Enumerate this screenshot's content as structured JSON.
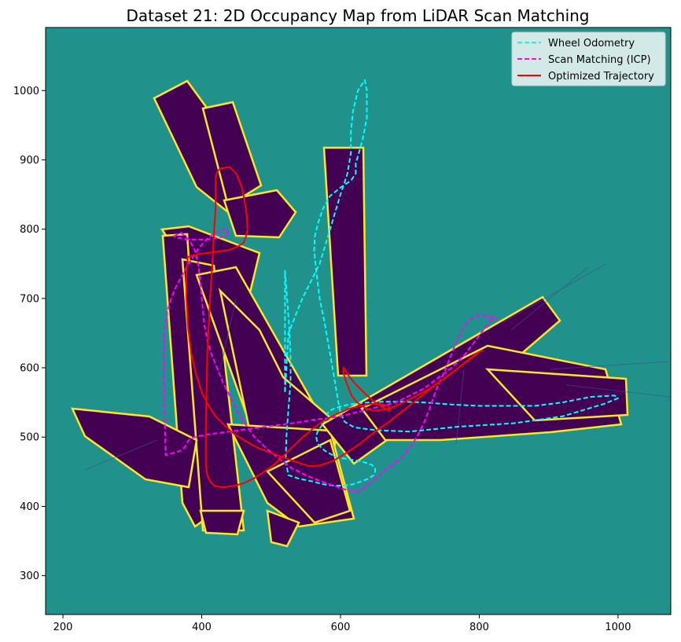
{
  "chart_data": {
    "type": "line",
    "title": "Dataset 21: 2D Occupancy Map from LiDAR Scan Matching",
    "xlabel": "",
    "ylabel": "",
    "xlim": [
      175,
      1076
    ],
    "ylim": [
      244,
      1091
    ],
    "xticks": [
      200,
      400,
      600,
      800,
      1000
    ],
    "yticks": [
      300,
      400,
      500,
      600,
      700,
      800,
      900,
      1000
    ],
    "grid": false,
    "legend_position": "top-right",
    "colors": {
      "background": "#21918c",
      "occupied": "#440154",
      "boundary": "#fde725"
    },
    "series": [
      {
        "name": "Wheel Odometry",
        "color": "#00ffff",
        "dash": "dashed",
        "x": [
          520,
          525,
          545,
          570,
          585,
          600,
          610,
          615,
          615,
          618,
          625,
          635,
          638,
          638,
          632,
          628,
          625,
          622,
          622,
          615,
          600,
          585,
          575,
          568,
          563,
          562,
          565,
          570,
          578,
          585,
          592,
          596,
          600,
          606,
          620,
          650,
          700,
          770,
          850,
          920,
          980,
          1000,
          995,
          960,
          920,
          880,
          840,
          800,
          760,
          720,
          690,
          660,
          640,
          620,
          602,
          588,
          582,
          580,
          578,
          575,
          572,
          568,
          566,
          565,
          566,
          568,
          572,
          578,
          585,
          592,
          600,
          612,
          630,
          645,
          650,
          650,
          648,
          640,
          630,
          618,
          605,
          590,
          575,
          560,
          540,
          525,
          521,
          522,
          525,
          528,
          528,
          526,
          523,
          520,
          520
        ],
        "y": [
          565,
          650,
          700,
          750,
          800,
          850,
          880,
          910,
          940,
          970,
          1000,
          1015,
          1000,
          960,
          930,
          915,
          905,
          895,
          880,
          870,
          860,
          848,
          830,
          810,
          790,
          770,
          740,
          700,
          660,
          620,
          580,
          555,
          535,
          522,
          514,
          510,
          508,
          515,
          520,
          530,
          548,
          556,
          560,
          558,
          550,
          545,
          545,
          545,
          547,
          550,
          551,
          551,
          550,
          548,
          545,
          540,
          535,
          530,
          525,
          520,
          515,
          510,
          505,
          500,
          495,
          490,
          485,
          480,
          476,
          472,
          470,
          468,
          465,
          460,
          455,
          450,
          445,
          440,
          436,
          432,
          430,
          430,
          432,
          436,
          440,
          445,
          465,
          500,
          540,
          580,
          620,
          660,
          700,
          740,
          565
        ]
      },
      {
        "name": "Scan Matching (ICP)",
        "color": "#ff00ff",
        "dash": "dashed",
        "x": [
          360,
          370,
          382,
          390,
          395,
          398,
          400,
          402,
          404,
          408,
          414,
          422,
          430,
          440,
          450,
          462,
          476,
          492,
          510,
          530,
          550,
          570,
          590,
          605,
          615,
          622,
          628,
          633,
          640,
          650,
          662,
          675,
          688,
          700,
          710,
          720,
          728,
          735,
          742,
          750,
          758,
          766,
          774,
          782,
          790,
          800,
          810,
          820,
          826,
          820,
          810,
          795,
          780,
          760,
          740,
          720,
          700,
          680,
          660,
          640,
          620,
          600,
          580,
          560,
          545,
          530,
          515,
          500,
          485,
          470,
          455,
          440,
          425,
          410,
          398,
          390,
          385,
          382,
          380,
          379,
          378,
          377,
          376,
          374,
          372,
          368,
          362,
          355,
          348,
          345,
          346,
          350,
          356,
          362,
          370,
          378,
          386,
          394,
          402,
          410,
          418,
          426,
          432,
          436,
          438,
          438,
          436,
          432,
          425,
          415,
          402,
          388,
          374,
          362,
          360
        ],
        "y": [
          790,
          795,
          785,
          770,
          750,
          725,
          700,
          680,
          660,
          640,
          620,
          600,
          580,
          560,
          540,
          520,
          500,
          485,
          470,
          455,
          445,
          437,
          430,
          425,
          422,
          421,
          422,
          426,
          432,
          440,
          450,
          460,
          470,
          485,
          500,
          520,
          540,
          560,
          578,
          595,
          615,
          635,
          652,
          665,
          672,
          676,
          675,
          673,
          670,
          672,
          660,
          640,
          620,
          600,
          585,
          570,
          560,
          550,
          545,
          540,
          535,
          530,
          527,
          525,
          522,
          520,
          518,
          516,
          514,
          512,
          510,
          508,
          506,
          504,
          502,
          500,
          498,
          496,
          494,
          492,
          490,
          488,
          486,
          484,
          482,
          480,
          478,
          476,
          474,
          600,
          650,
          680,
          700,
          715,
          730,
          745,
          758,
          770,
          780,
          788,
          794,
          798,
          800,
          800,
          798,
          795,
          792,
          790,
          788,
          786,
          785,
          785,
          786,
          788,
          790
        ]
      },
      {
        "name": "Optimized Trajectory",
        "color": "#ff0000",
        "dash": "solid",
        "x": [
          430,
          440,
          450,
          458,
          462,
          465,
          466,
          464,
          460,
          452,
          440,
          425,
          410,
          396,
          386,
          380,
          378,
          378,
          380,
          385,
          392,
          400,
          410,
          420,
          432,
          446,
          462,
          480,
          500,
          520,
          540,
          555,
          570,
          590,
          610,
          630,
          650,
          670,
          690,
          710,
          730,
          750,
          770,
          790,
          800,
          805,
          798,
          785,
          770,
          755,
          740,
          725,
          710,
          695,
          680,
          665,
          650,
          640,
          630,
          622,
          616,
          612,
          608,
          605,
          604,
          606,
          612,
          622,
          636,
          650,
          662,
          670,
          672,
          668,
          658,
          644,
          628,
          610,
          592,
          575,
          560,
          546,
          532,
          518,
          504,
          490,
          476,
          462,
          448,
          436,
          426,
          418,
          412,
          408,
          406,
          406,
          408,
          412,
          416,
          418,
          420,
          420,
          420,
          420,
          422,
          425,
          428,
          430
        ],
        "y": [
          888,
          890,
          880,
          860,
          840,
          820,
          800,
          790,
          780,
          775,
          770,
          768,
          766,
          764,
          762,
          760,
          740,
          700,
          660,
          620,
          590,
          565,
          545,
          530,
          518,
          505,
          495,
          485,
          477,
          470,
          463,
          458,
          459,
          466,
          478,
          492,
          508,
          522,
          538,
          554,
          570,
          585,
          600,
          615,
          623,
          625,
          622,
          612,
          600,
          588,
          578,
          568,
          560,
          552,
          545,
          540,
          538,
          540,
          545,
          552,
          560,
          570,
          580,
          590,
          600,
          598,
          588,
          576,
          562,
          550,
          542,
          538,
          540,
          545,
          548,
          548,
          545,
          540,
          532,
          523,
          512,
          500,
          487,
          473,
          460,
          450,
          441,
          434,
          430,
          428,
          428,
          430,
          436,
          445,
          460,
          520,
          620,
          700,
          760,
          800,
          830,
          850,
          865,
          875,
          882,
          886,
          888,
          888
        ]
      }
    ],
    "legend": [
      "Wheel Odometry",
      "Scan Matching (ICP)",
      "Optimized Trajectory"
    ]
  }
}
